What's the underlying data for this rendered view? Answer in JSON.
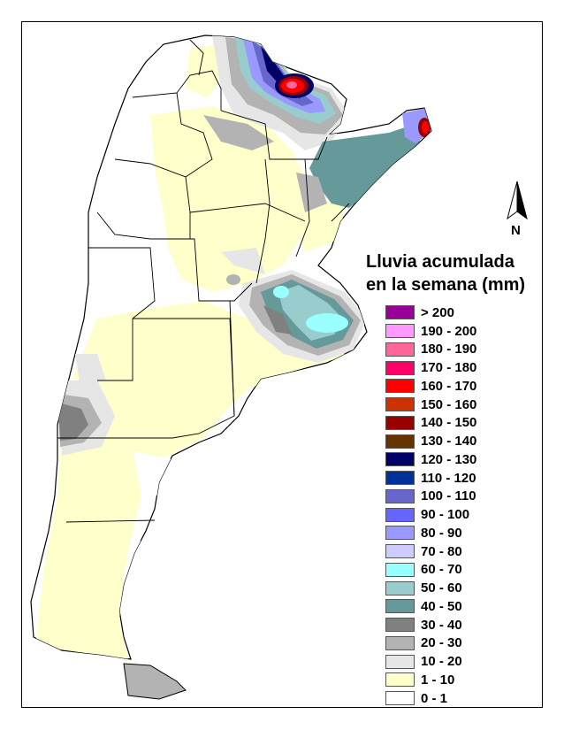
{
  "legend": {
    "title_line1": "Lluvia acumulada",
    "title_line2": "en la semana (mm)",
    "items": [
      {
        "label": "> 200",
        "color": "#990099"
      },
      {
        "label": "190 - 200",
        "color": "#ff99ff"
      },
      {
        "label": "180 - 190",
        "color": "#ff6699"
      },
      {
        "label": "170 - 180",
        "color": "#ff0066"
      },
      {
        "label": "160 - 170",
        "color": "#ff0000"
      },
      {
        "label": "150 - 160",
        "color": "#cc3300"
      },
      {
        "label": "140 - 150",
        "color": "#990000"
      },
      {
        "label": "130 - 140",
        "color": "#663300"
      },
      {
        "label": "120 - 130",
        "color": "#000066"
      },
      {
        "label": "110 - 120",
        "color": "#003399"
      },
      {
        "label": "100 - 110",
        "color": "#6666cc"
      },
      {
        "label": "90 - 100",
        "color": "#6666ff"
      },
      {
        "label": "80 - 90",
        "color": "#9999ff"
      },
      {
        "label": "70 - 80",
        "color": "#ccccff"
      },
      {
        "label": "60 - 70",
        "color": "#99ffff"
      },
      {
        "label": "50 - 60",
        "color": "#99cccc"
      },
      {
        "label": "40 - 50",
        "color": "#669999"
      },
      {
        "label": "30 - 40",
        "color": "#808080"
      },
      {
        "label": "20 - 30",
        "color": "#b3b3b3"
      },
      {
        "label": "10 - 20",
        "color": "#e6e6e6"
      },
      {
        "label": "1 - 10",
        "color": "#ffffcc"
      },
      {
        "label": "0 - 1",
        "color": "#ffffff"
      }
    ]
  },
  "compass": {
    "letter": "N",
    "icon": "north-arrow-icon"
  }
}
